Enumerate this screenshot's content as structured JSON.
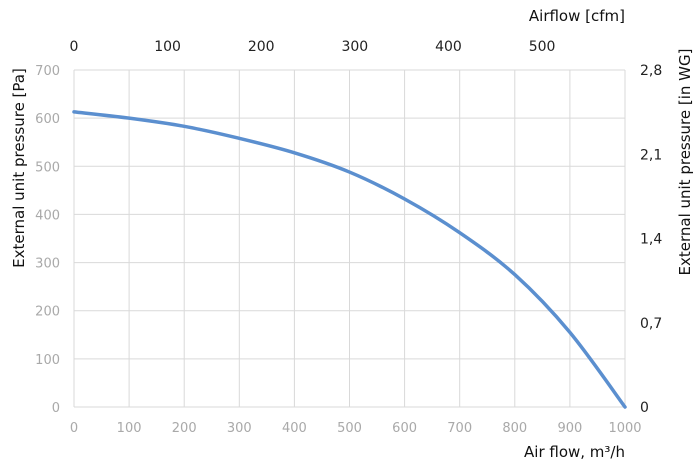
{
  "chart_data": {
    "type": "line",
    "x_primary": {
      "label": "Air flow, m³/h",
      "range": [
        0,
        1000
      ],
      "ticks": [
        "0",
        "100",
        "200",
        "300",
        "400",
        "500",
        "600",
        "700",
        "800",
        "900",
        "1000"
      ]
    },
    "x_secondary": {
      "label": "Airflow [cfm]",
      "range": [
        0,
        588.6
      ],
      "ticks": [
        "0",
        "100",
        "200",
        "300",
        "400",
        "500"
      ]
    },
    "y_primary": {
      "label": "External unit pressure [Pa]",
      "range": [
        0,
        700
      ],
      "ticks": [
        "0",
        "100",
        "200",
        "300",
        "400",
        "500",
        "600",
        "700"
      ]
    },
    "y_secondary": {
      "label": "External unit pressure [in WG]",
      "range": [
        0,
        2.8
      ],
      "ticks": [
        "0",
        "0,7",
        "1,4",
        "2,1",
        "2,8"
      ]
    },
    "grid": true,
    "series": [
      {
        "color": "#5b8fcf",
        "x": [
          0,
          100,
          200,
          300,
          400,
          500,
          600,
          700,
          800,
          900,
          1000
        ],
        "y": [
          613,
          600,
          583,
          558,
          528,
          488,
          432,
          362,
          275,
          155,
          0
        ]
      }
    ]
  }
}
